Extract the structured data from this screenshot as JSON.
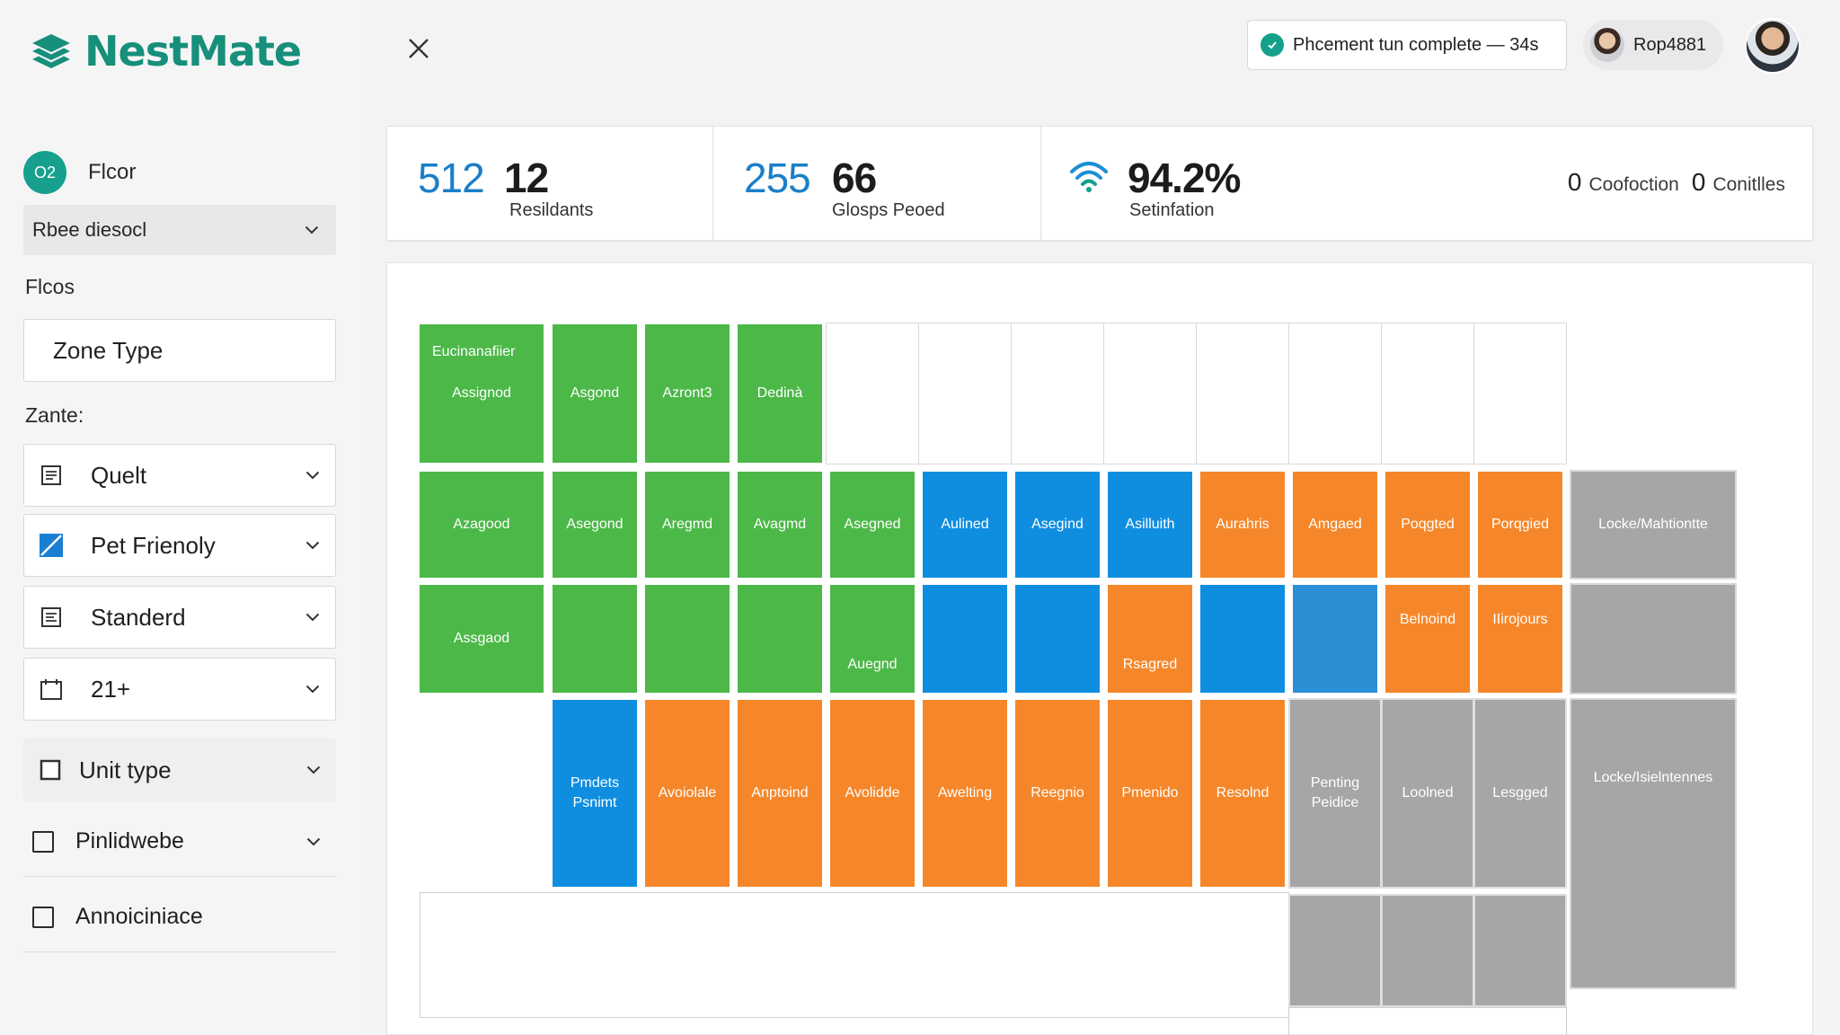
{
  "app": {
    "name": "NestMate"
  },
  "sidebar": {
    "floor_badge": "O2",
    "floor_label": "Flcor",
    "building_select": "Rbee diesocl",
    "floors_heading": "Flcos",
    "zone_input": "Zone Type",
    "zante_heading": "Zante:",
    "filters": [
      {
        "label": "Quelt",
        "icon": "list-icon"
      },
      {
        "label": "Pet Frienoly",
        "icon": "checkbox-checked-icon"
      },
      {
        "label": "Standerd",
        "icon": "list-icon"
      },
      {
        "label": "21+",
        "icon": "calendar-icon"
      },
      {
        "label": "Unit type",
        "icon": "checkbox-icon"
      }
    ],
    "plain_filters": [
      {
        "label": "Pinlidwebe"
      },
      {
        "label": "Annoiciniace"
      }
    ]
  },
  "topbar": {
    "status": "Phcement tun complete — 34s",
    "username": "Rop4881"
  },
  "kpis": [
    {
      "value_a": "512",
      "value_b": "12",
      "caption": "Resildants"
    },
    {
      "value_a": "255",
      "value_b": "66",
      "caption": "Glosps Peoed"
    },
    {
      "value_b": "94.2%",
      "caption": "Setinfation",
      "icon": "wifi-icon"
    }
  ],
  "kpi_right": {
    "count_a": "0",
    "label_a": "Coofoction",
    "count_b": "0",
    "label_b": "Conitlles"
  },
  "colors": {
    "assigned": "#4cb848",
    "available": "#0f8ee0",
    "pending": "#f5872a",
    "locked": "#a6a6a8",
    "brand": "#178f7a"
  },
  "plan": {
    "r1": {
      "c1_top": "Eucinanafiier",
      "c1": "Assignod",
      "c2": "Asgond",
      "c3": "Azront3",
      "c4": "Dedinà"
    },
    "r2": {
      "c1": "Azagood",
      "c2": "Asegond",
      "c3": "Aregmd",
      "c4": "Avagmd",
      "c5": "Asegned",
      "c6": "Aulined",
      "c7": "Asegind",
      "c8": "Asilluith",
      "c9": "Aurahris",
      "c10": "Amgaed",
      "c11": "Poqgted",
      "c12": "Porqgied",
      "c13": "Locke/Mahtiontte"
    },
    "r3": {
      "c1": "Assgaod",
      "c5": "Auegnd",
      "c8": "Rsagred",
      "c11": "Belnoind",
      "c12": "IIirojours"
    },
    "r4": {
      "c2": "Pmdets Psnimt",
      "c3": "Avoiolale",
      "c4": "Anptoind",
      "c5": "Avolidde",
      "c6": "Awelting",
      "c7": "Reegnio",
      "c8": "Pmenido",
      "c9": "Resolnd",
      "c10": "Penting Peidice",
      "c11": "Loolned",
      "c12": "Lesgged",
      "c13": "Locke/Isielntennes"
    }
  }
}
